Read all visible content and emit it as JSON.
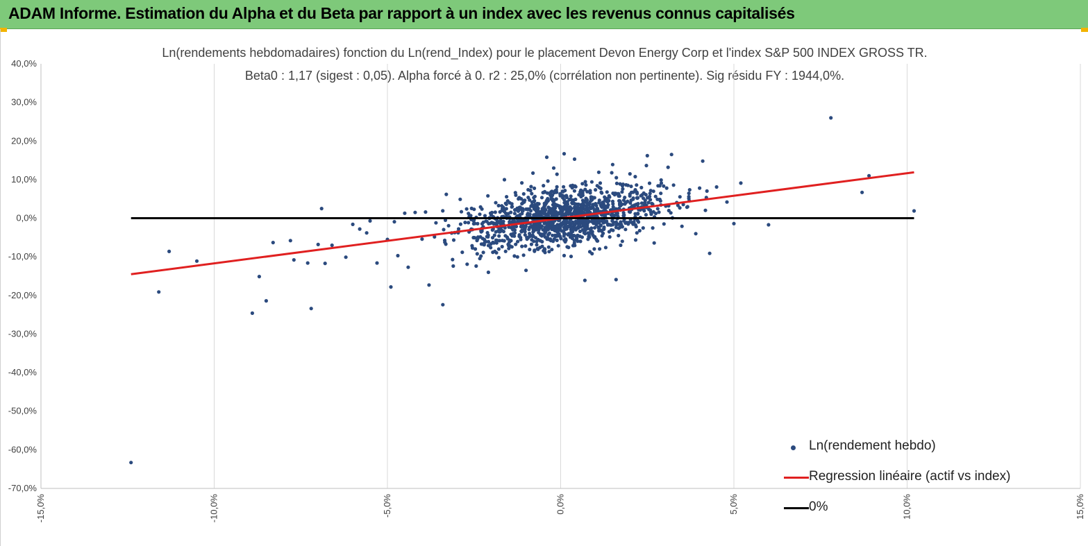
{
  "banner": {
    "title": "ADAM Informe. Estimation du Alpha et du Beta par rapport à un index avec les revenus connus capitalisés",
    "background": "#7ec97a",
    "corner_marker_color": "#f2b300"
  },
  "chart_data": {
    "type": "scatter",
    "title_line1": "Ln(rendements hebdomadaires) fonction du Ln(rend_Index) pour le placement Devon Energy Corp et l'index S&P 500 INDEX GROSS TR.",
    "title_line2": "Beta0 : 1,17 (sigest : 0,05).  Alpha forcé à 0. r2 : 25,0% (corrélation non pertinente). Sig résidu FY : 1944,0%.",
    "xlim": [
      -15,
      15
    ],
    "ylim": [
      -70,
      40
    ],
    "x_ticks": [
      -15,
      -10,
      -5,
      0,
      5,
      10,
      15
    ],
    "y_ticks": [
      40,
      30,
      20,
      10,
      0,
      -10,
      -20,
      -30,
      -40,
      -50,
      -60,
      -70
    ],
    "x_tick_labels": [
      "-15,0%",
      "-10,0%",
      "-5,0%",
      "0,0%",
      "5,0%",
      "10,0%",
      "15,0%"
    ],
    "y_tick_labels": [
      "40,0%",
      "30,0%",
      "20,0%",
      "10,0%",
      "0,0%",
      "-10,0%",
      "-20,0%",
      "-30,0%",
      "-40,0%",
      "-50,0%",
      "-60,0%",
      "-70,0%"
    ],
    "grid": "vertical",
    "legend_position": "bottom-right",
    "series": [
      {
        "name": "Ln(rendement hebdo)",
        "kind": "scatter",
        "color": "#2b4a7e",
        "points": [
          [
            -12.4,
            -63.3
          ],
          [
            -11.6,
            -19.1
          ],
          [
            -11.3,
            -8.6
          ],
          [
            -10.5,
            -11.1
          ],
          [
            -8.9,
            -24.6
          ],
          [
            -8.7,
            -15.1
          ],
          [
            -8.5,
            -21.4
          ],
          [
            -8.3,
            -6.3
          ],
          [
            -7.8,
            -5.8
          ],
          [
            -7.7,
            -10.8
          ],
          [
            -7.3,
            -11.6
          ],
          [
            -7.2,
            -23.4
          ],
          [
            -7.0,
            -6.8
          ],
          [
            -6.9,
            2.5
          ],
          [
            -6.8,
            -11.7
          ],
          [
            -6.6,
            -7.0
          ],
          [
            -6.2,
            -10.1
          ],
          [
            -6.0,
            -1.6
          ],
          [
            -5.8,
            -2.8
          ],
          [
            -5.6,
            -3.8
          ],
          [
            -5.5,
            -0.7
          ],
          [
            -5.3,
            -11.6
          ],
          [
            -5.0,
            -5.5
          ],
          [
            -4.9,
            -17.8
          ],
          [
            -4.8,
            -0.9
          ],
          [
            -4.7,
            -9.7
          ],
          [
            -4.5,
            1.3
          ],
          [
            -4.4,
            -12.7
          ],
          [
            -4.2,
            1.5
          ],
          [
            -4.0,
            -5.4
          ],
          [
            -3.9,
            1.6
          ],
          [
            -3.8,
            -17.3
          ],
          [
            -3.6,
            -1.2
          ],
          [
            -3.4,
            -22.4
          ],
          [
            -3.3,
            6.2
          ],
          [
            -3.1,
            -12.4
          ],
          [
            -2.9,
            4.9
          ],
          [
            -2.7,
            -11.9
          ],
          [
            -2.5,
            2.3
          ],
          [
            -2.3,
            -9.8
          ],
          [
            -2.1,
            5.8
          ],
          [
            -1.9,
            -8.6
          ],
          [
            -1.7,
            3.2
          ],
          [
            -1.5,
            -7.1
          ],
          [
            -1.2,
            5.3
          ],
          [
            -1.0,
            -13.5
          ],
          [
            -0.8,
            11.7
          ],
          [
            -0.6,
            -7.6
          ],
          [
            -0.4,
            15.8
          ],
          [
            -0.2,
            13.0
          ],
          [
            0.1,
            16.7
          ],
          [
            0.3,
            -9.9
          ],
          [
            0.4,
            15.3
          ],
          [
            0.6,
            7.1
          ],
          [
            0.7,
            -16.1
          ],
          [
            0.9,
            9.4
          ],
          [
            1.1,
            11.9
          ],
          [
            1.3,
            -7.6
          ],
          [
            1.5,
            13.9
          ],
          [
            1.6,
            -15.9
          ],
          [
            1.8,
            8.8
          ],
          [
            2.0,
            11.5
          ],
          [
            2.2,
            -3.8
          ],
          [
            2.5,
            16.2
          ],
          [
            2.7,
            -6.4
          ],
          [
            2.9,
            9.9
          ],
          [
            3.1,
            13.2
          ],
          [
            3.2,
            16.5
          ],
          [
            3.5,
            -2.1
          ],
          [
            3.7,
            5.1
          ],
          [
            3.9,
            -4.0
          ],
          [
            4.1,
            14.8
          ],
          [
            4.3,
            -9.1
          ],
          [
            4.5,
            8.1
          ],
          [
            4.8,
            4.2
          ],
          [
            5.0,
            -1.4
          ],
          [
            5.2,
            9.1
          ],
          [
            6.0,
            -1.7
          ],
          [
            7.8,
            26.0
          ],
          [
            8.7,
            6.7
          ],
          [
            8.9,
            11.0
          ],
          [
            10.2,
            1.9
          ]
        ],
        "dense_cluster_note": "About 1,400 weekly observations in total; the dense cloud lies around x -4..+4, y -10..+10."
      },
      {
        "name": "Regression linéaire (actif vs index)",
        "kind": "line",
        "color": "#e02020",
        "points": [
          [
            -12.4,
            -14.5
          ],
          [
            10.2,
            11.9
          ]
        ]
      },
      {
        "name": "0%",
        "kind": "line",
        "color": "#000000",
        "points": [
          [
            -12.4,
            0
          ],
          [
            10.2,
            0
          ]
        ]
      }
    ]
  }
}
